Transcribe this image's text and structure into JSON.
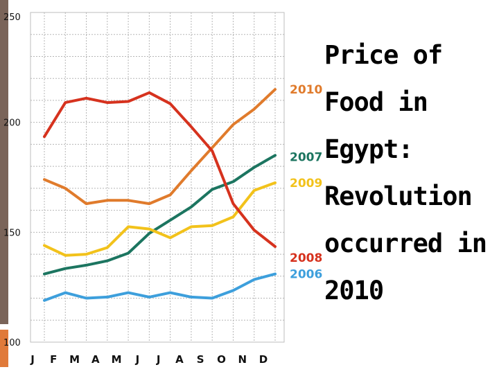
{
  "slide": {
    "title": "Price of\nFood in\nEgypt:\nRevolution\noccurred in\n2010",
    "bar_color": "#7a6459",
    "accent_color": "#e07a3a"
  },
  "chart_data": {
    "type": "line",
    "title": "Price of Food in Egypt: Revolution occurred in 2010",
    "xlabel": "",
    "ylabel": "",
    "ylim": [
      100,
      250
    ],
    "yticks": [
      100,
      150,
      200,
      250
    ],
    "grid": true,
    "categories": [
      "J",
      "F",
      "M",
      "A",
      "M",
      "J",
      "J",
      "A",
      "S",
      "O",
      "N",
      "D"
    ],
    "series": [
      {
        "name": "2010",
        "color": "#e07b2c",
        "values": [
          174,
          170,
          163,
          164.5,
          164.5,
          163,
          167,
          178,
          188.5,
          199,
          206,
          215
        ]
      },
      {
        "name": "2007",
        "color": "#1c7560",
        "values": [
          131,
          133.5,
          135,
          137,
          140.5,
          149.5,
          155.5,
          161.5,
          169.5,
          173,
          179.5,
          185
        ]
      },
      {
        "name": "2009",
        "color": "#f2c21b",
        "values": [
          144,
          139.5,
          140,
          143,
          152.5,
          151.5,
          147.5,
          152.5,
          153,
          157,
          169,
          172.5
        ]
      },
      {
        "name": "2008",
        "color": "#d6321e",
        "values": [
          193.5,
          209,
          211,
          209,
          209.5,
          213.5,
          208.5,
          198,
          187,
          163,
          151,
          143.5
        ]
      },
      {
        "name": "2006",
        "color": "#3d9fdc",
        "values": [
          119,
          122.5,
          120,
          120.5,
          122.5,
          120.5,
          122.5,
          120.5,
          120,
          123.5,
          128.5,
          131
        ]
      }
    ]
  }
}
